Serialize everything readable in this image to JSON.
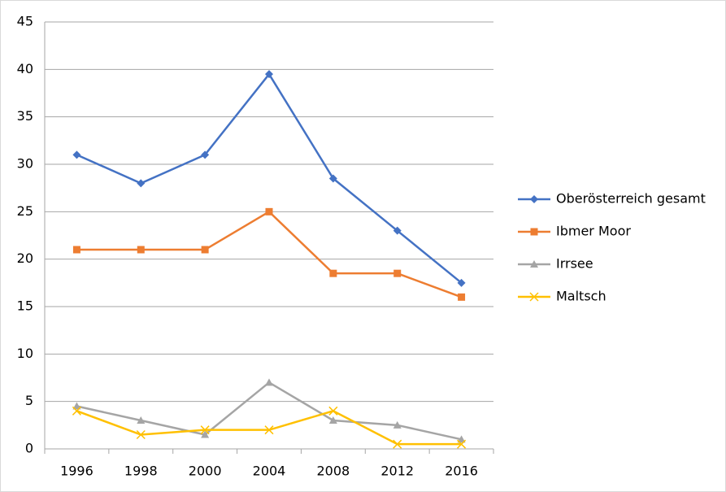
{
  "chart_data": {
    "type": "line",
    "categories": [
      "1996",
      "1998",
      "2000",
      "2004",
      "2008",
      "2012",
      "2016"
    ],
    "series": [
      {
        "name": "Oberösterreich gesamt",
        "color": "#4472c4",
        "marker": "diamond",
        "values": [
          31,
          28,
          31,
          39.5,
          28.5,
          23,
          17.5
        ]
      },
      {
        "name": "Ibmer Moor",
        "color": "#ed7d31",
        "marker": "square",
        "values": [
          21,
          21,
          21,
          25,
          18.5,
          18.5,
          16
        ]
      },
      {
        "name": "Irrsee",
        "color": "#a5a5a5",
        "marker": "triangle",
        "values": [
          4.5,
          3,
          1.5,
          7,
          3,
          2.5,
          1
        ]
      },
      {
        "name": "Maltsch",
        "color": "#ffc000",
        "marker": "x",
        "values": [
          4,
          1.5,
          2,
          2,
          4,
          0.5,
          0.5
        ]
      }
    ],
    "ylim": [
      0,
      45
    ],
    "yticks": [
      0,
      5,
      10,
      15,
      20,
      25,
      30,
      35,
      40,
      45
    ],
    "grid": true,
    "legend": "right"
  }
}
